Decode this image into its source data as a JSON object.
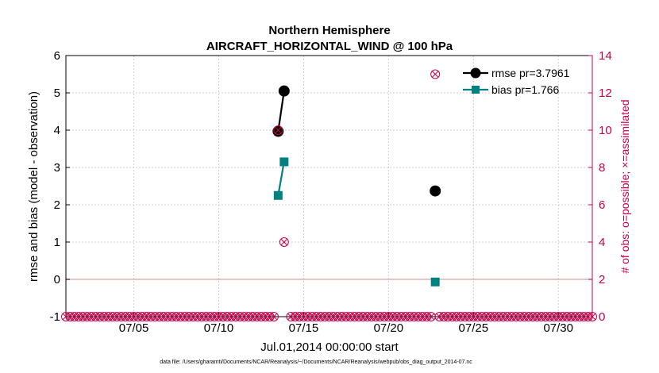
{
  "chart_data": {
    "type": "line",
    "title": "Northern Hemisphere",
    "subtitle": "AIRCRAFT_HORIZONTAL_WIND @ 100 hPa",
    "xlabel": "Jul.01,2014 00:00:00 start",
    "ylabel": "rmse and bias (model - observation)",
    "ylabel_right": "# of obs: o=possible; ×=assimilated",
    "footnote": "data file: /Users/gharamti/Documents/NCAR/Reanalysis/~/Documents/NCAR/Reanalysis/webpub/obs_diag_output_2014-07.nc",
    "xlim": [
      1,
      32
    ],
    "ylim": [
      -1,
      6
    ],
    "ylim_right": [
      0,
      14
    ],
    "x_ticks": [
      {
        "value": 5,
        "label": "07/05"
      },
      {
        "value": 10,
        "label": "07/10"
      },
      {
        "value": 15,
        "label": "07/15"
      },
      {
        "value": 20,
        "label": "07/20"
      },
      {
        "value": 25,
        "label": "07/25"
      },
      {
        "value": 30,
        "label": "07/30"
      }
    ],
    "y_ticks": [
      "-1",
      "0",
      "1",
      "2",
      "3",
      "4",
      "5",
      "6"
    ],
    "y_ticks_right": [
      "0",
      "2",
      "4",
      "6",
      "8",
      "10",
      "12",
      "14"
    ],
    "grid": true,
    "legend_position": "top-right",
    "zero_line": 0,
    "series": [
      {
        "name": "rmse pr=3.7961",
        "color": "#000000",
        "marker": "circle",
        "segments": [
          [
            [
              13.5,
              3.97
            ],
            [
              13.85,
              5.05
            ]
          ],
          [
            [
              22.75,
              2.37
            ]
          ]
        ]
      },
      {
        "name": "bias pr=1.766",
        "color": "#008080",
        "marker": "square",
        "segments": [
          [
            [
              13.5,
              2.25
            ],
            [
              13.85,
              3.15
            ]
          ],
          [
            [
              22.75,
              -0.07
            ]
          ]
        ]
      }
    ],
    "obs_possible": {
      "color": "#c8004b",
      "marker": "o",
      "points": [
        [
          13.5,
          10
        ],
        [
          13.85,
          4
        ],
        [
          22.75,
          13
        ]
      ],
      "zero_count_x_start": 1,
      "zero_count_x_end": 32,
      "zero_count_step": 0.25
    },
    "obs_assimilated": {
      "color": "#c8004b",
      "marker": "x",
      "points": [
        [
          13.5,
          10
        ],
        [
          13.85,
          4
        ],
        [
          22.75,
          13
        ]
      ]
    }
  }
}
